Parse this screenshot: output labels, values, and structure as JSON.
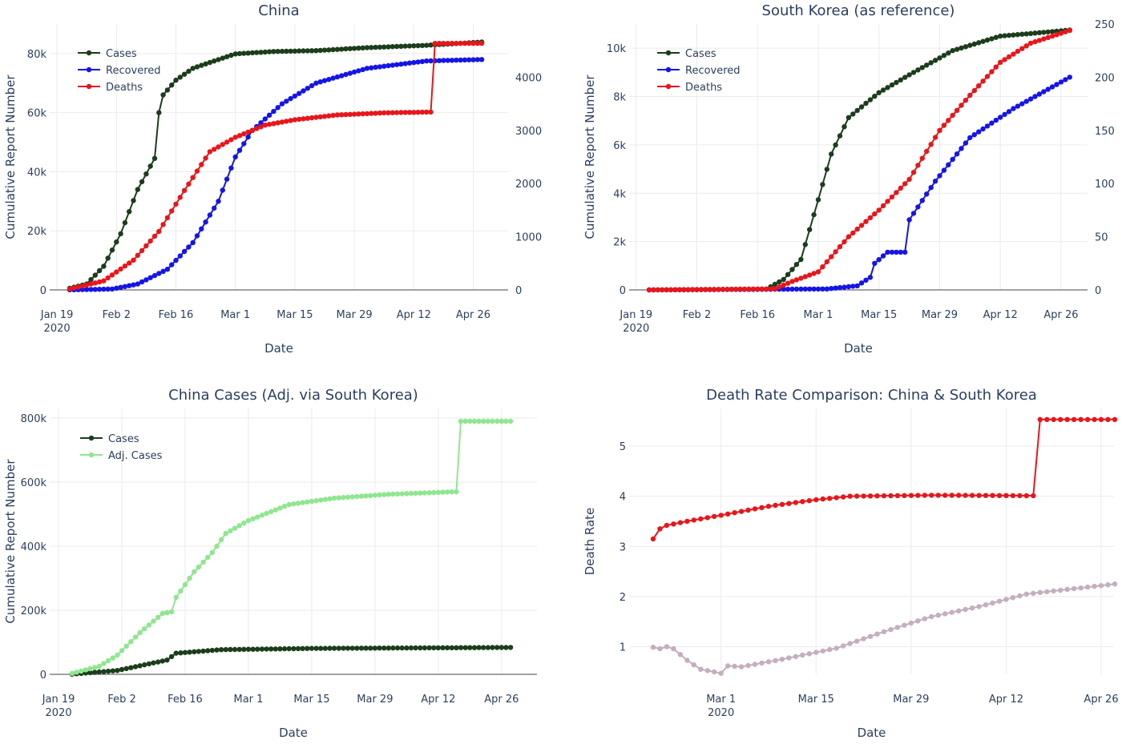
{
  "chart_data": [
    {
      "type": "line",
      "title": "China",
      "xlabel": "Date",
      "ylabel": "Cumulative Report Number",
      "x_start": "2020-01-22",
      "x_ticks": [
        [
          "Jan 19",
          "2020"
        ],
        [
          "Feb 2"
        ],
        [
          "Feb 16"
        ],
        [
          "Mar 1"
        ],
        [
          "Mar 15"
        ],
        [
          "Mar 29"
        ],
        [
          "Apr 12"
        ],
        [
          "Apr 26"
        ]
      ],
      "y_ticks": [
        "0",
        "20k",
        "40k",
        "60k",
        "80k"
      ],
      "y2_ticks": [
        "0",
        "1000",
        "2000",
        "3000",
        "4000"
      ],
      "ylim": [
        0,
        90000
      ],
      "y2lim": [
        0,
        5000
      ],
      "legend": "top-left",
      "series": [
        {
          "name": "Cases",
          "color": "#1b3d1b",
          "axis": "y1",
          "x": [
            "2020-01-22",
            "2020-01-26",
            "2020-01-30",
            "2020-02-03",
            "2020-02-07",
            "2020-02-11",
            "2020-02-12",
            "2020-02-13",
            "2020-02-16",
            "2020-02-20",
            "2020-02-24",
            "2020-03-01",
            "2020-03-10",
            "2020-03-20",
            "2020-04-01",
            "2020-04-15",
            "2020-04-28"
          ],
          "values": [
            550,
            2000,
            8000,
            19000,
            34000,
            44500,
            60000,
            66000,
            71000,
            75000,
            77000,
            79900,
            80700,
            81000,
            82000,
            82800,
            83900
          ]
        },
        {
          "name": "Recovered",
          "color": "#1515e6",
          "axis": "y1",
          "x": [
            "2020-01-22",
            "2020-02-01",
            "2020-02-07",
            "2020-02-14",
            "2020-02-20",
            "2020-02-26",
            "2020-03-01",
            "2020-03-05",
            "2020-03-12",
            "2020-03-20",
            "2020-04-01",
            "2020-04-15",
            "2020-04-28"
          ],
          "values": [
            30,
            300,
            2000,
            7000,
            16000,
            30000,
            45000,
            54000,
            63000,
            70000,
            75000,
            77500,
            78000
          ]
        },
        {
          "name": "Deaths",
          "color": "#e8161b",
          "axis": "y2",
          "x": [
            "2020-01-22",
            "2020-01-30",
            "2020-02-06",
            "2020-02-12",
            "2020-02-18",
            "2020-02-24",
            "2020-03-01",
            "2020-03-08",
            "2020-03-15",
            "2020-03-25",
            "2020-04-05",
            "2020-04-16",
            "2020-04-17",
            "2020-04-28"
          ],
          "values": [
            17,
            170,
            560,
            1100,
            1870,
            2600,
            2870,
            3100,
            3200,
            3290,
            3330,
            3345,
            4636,
            4637
          ]
        }
      ]
    },
    {
      "type": "line",
      "title": "South Korea (as reference)",
      "xlabel": "Date",
      "ylabel": "Cumulative Report Number",
      "x_start": "2020-01-22",
      "x_ticks": [
        [
          "Jan 19",
          "2020"
        ],
        [
          "Feb 2"
        ],
        [
          "Feb 16"
        ],
        [
          "Mar 1"
        ],
        [
          "Mar 15"
        ],
        [
          "Mar 29"
        ],
        [
          "Apr 12"
        ],
        [
          "Apr 26"
        ]
      ],
      "y_ticks": [
        "0",
        "2k",
        "4k",
        "6k",
        "8k",
        "10k"
      ],
      "y2_ticks": [
        "0",
        "50",
        "100",
        "150",
        "200",
        "250"
      ],
      "ylim": [
        0,
        11000
      ],
      "y2lim": [
        0,
        250
      ],
      "legend": "top-left",
      "series": [
        {
          "name": "Cases",
          "color": "#1b3d1b",
          "axis": "y1",
          "x": [
            "2020-01-22",
            "2020-02-18",
            "2020-02-22",
            "2020-02-26",
            "2020-03-01",
            "2020-03-04",
            "2020-03-08",
            "2020-03-15",
            "2020-03-22",
            "2020-04-01",
            "2020-04-12",
            "2020-04-28"
          ],
          "values": [
            1,
            31,
            430,
            1260,
            3730,
            5620,
            7130,
            8160,
            8900,
            9900,
            10500,
            10750
          ]
        },
        {
          "name": "Recovered",
          "color": "#1515e6",
          "axis": "y1",
          "x": [
            "2020-01-22",
            "2020-03-03",
            "2020-03-10",
            "2020-03-13",
            "2020-03-14",
            "2020-03-17",
            "2020-03-21",
            "2020-03-22",
            "2020-03-28",
            "2020-04-05",
            "2020-04-15",
            "2020-04-28"
          ],
          "values": [
            0,
            40,
            170,
            520,
            1100,
            1560,
            1560,
            2900,
            4500,
            6300,
            7500,
            8800
          ]
        },
        {
          "name": "Deaths",
          "color": "#e8161b",
          "axis": "y2",
          "x": [
            "2020-01-22",
            "2020-02-20",
            "2020-02-24",
            "2020-03-01",
            "2020-03-08",
            "2020-03-15",
            "2020-03-22",
            "2020-03-29",
            "2020-04-05",
            "2020-04-12",
            "2020-04-19",
            "2020-04-28"
          ],
          "values": [
            0,
            1,
            8,
            17,
            50,
            75,
            104,
            150,
            183,
            214,
            232,
            244
          ]
        }
      ]
    },
    {
      "type": "line",
      "title": "China Cases (Adj. via South Korea)",
      "xlabel": "Date",
      "ylabel": "Cumulative Report Number",
      "x_start": "2020-01-22",
      "x_ticks": [
        [
          "Jan 19",
          "2020"
        ],
        [
          "Feb 2"
        ],
        [
          "Feb 16"
        ],
        [
          "Mar 1"
        ],
        [
          "Mar 15"
        ],
        [
          "Mar 29"
        ],
        [
          "Apr 12"
        ],
        [
          "Apr 26"
        ]
      ],
      "y_ticks": [
        "0",
        "200k",
        "400k",
        "600k",
        "800k"
      ],
      "ylim": [
        0,
        830000
      ],
      "legend": "top-left",
      "series": [
        {
          "name": "Cases",
          "color": "#1b3d1b",
          "axis": "y1",
          "x": [
            "2020-01-22",
            "2020-02-01",
            "2020-02-12",
            "2020-02-14",
            "2020-02-24",
            "2020-03-15",
            "2020-04-28"
          ],
          "values": [
            550,
            12000,
            44500,
            66000,
            77000,
            80900,
            83900
          ]
        },
        {
          "name": "Adj. Cases",
          "color": "#90e690",
          "axis": "y1",
          "x": [
            "2020-01-22",
            "2020-01-28",
            "2020-02-01",
            "2020-02-06",
            "2020-02-11",
            "2020-02-13",
            "2020-02-14",
            "2020-02-18",
            "2020-02-22",
            "2020-02-25",
            "2020-03-01",
            "2020-03-10",
            "2020-03-20",
            "2020-04-01",
            "2020-04-16",
            "2020-04-17",
            "2020-04-28"
          ],
          "values": [
            3000,
            25000,
            60000,
            130000,
            190000,
            195000,
            240000,
            320000,
            380000,
            440000,
            480000,
            530000,
            550000,
            562000,
            570000,
            790000,
            790000
          ]
        }
      ]
    },
    {
      "type": "line",
      "title": "Death Rate Comparison: China & South Korea",
      "xlabel": "Date",
      "ylabel": "Death Rate",
      "x_start": "2020-02-20",
      "x_ticks": [
        [
          "Mar 1",
          "2020"
        ],
        [
          "Mar 15"
        ],
        [
          "Mar 29"
        ],
        [
          "Apr 12"
        ],
        [
          "Apr 26"
        ]
      ],
      "y_ticks": [
        "1",
        "2",
        "3",
        "4",
        "5"
      ],
      "ylim": [
        0.45,
        5.75
      ],
      "series": [
        {
          "color": "#e8161b",
          "axis": "y1",
          "x": [
            "2020-02-20",
            "2020-02-21",
            "2020-02-22",
            "2020-02-25",
            "2020-03-01",
            "2020-03-08",
            "2020-03-15",
            "2020-03-20",
            "2020-04-01",
            "2020-04-16",
            "2020-04-17",
            "2020-04-28"
          ],
          "values": [
            3.15,
            3.35,
            3.42,
            3.5,
            3.62,
            3.8,
            3.93,
            4.0,
            4.02,
            4.01,
            5.53,
            5.53
          ]
        },
        {
          "color": "#c4afbe",
          "axis": "y1",
          "x": [
            "2020-02-20",
            "2020-02-21",
            "2020-02-22",
            "2020-02-23",
            "2020-02-25",
            "2020-02-27",
            "2020-02-29",
            "2020-03-01",
            "2020-03-02",
            "2020-03-04",
            "2020-03-10",
            "2020-03-18",
            "2020-03-25",
            "2020-04-01",
            "2020-04-08",
            "2020-04-15",
            "2020-04-28"
          ],
          "values": [
            0.99,
            0.96,
            1.0,
            0.96,
            0.73,
            0.55,
            0.5,
            0.47,
            0.62,
            0.6,
            0.75,
            0.97,
            1.3,
            1.6,
            1.8,
            2.05,
            2.25
          ]
        }
      ]
    }
  ]
}
